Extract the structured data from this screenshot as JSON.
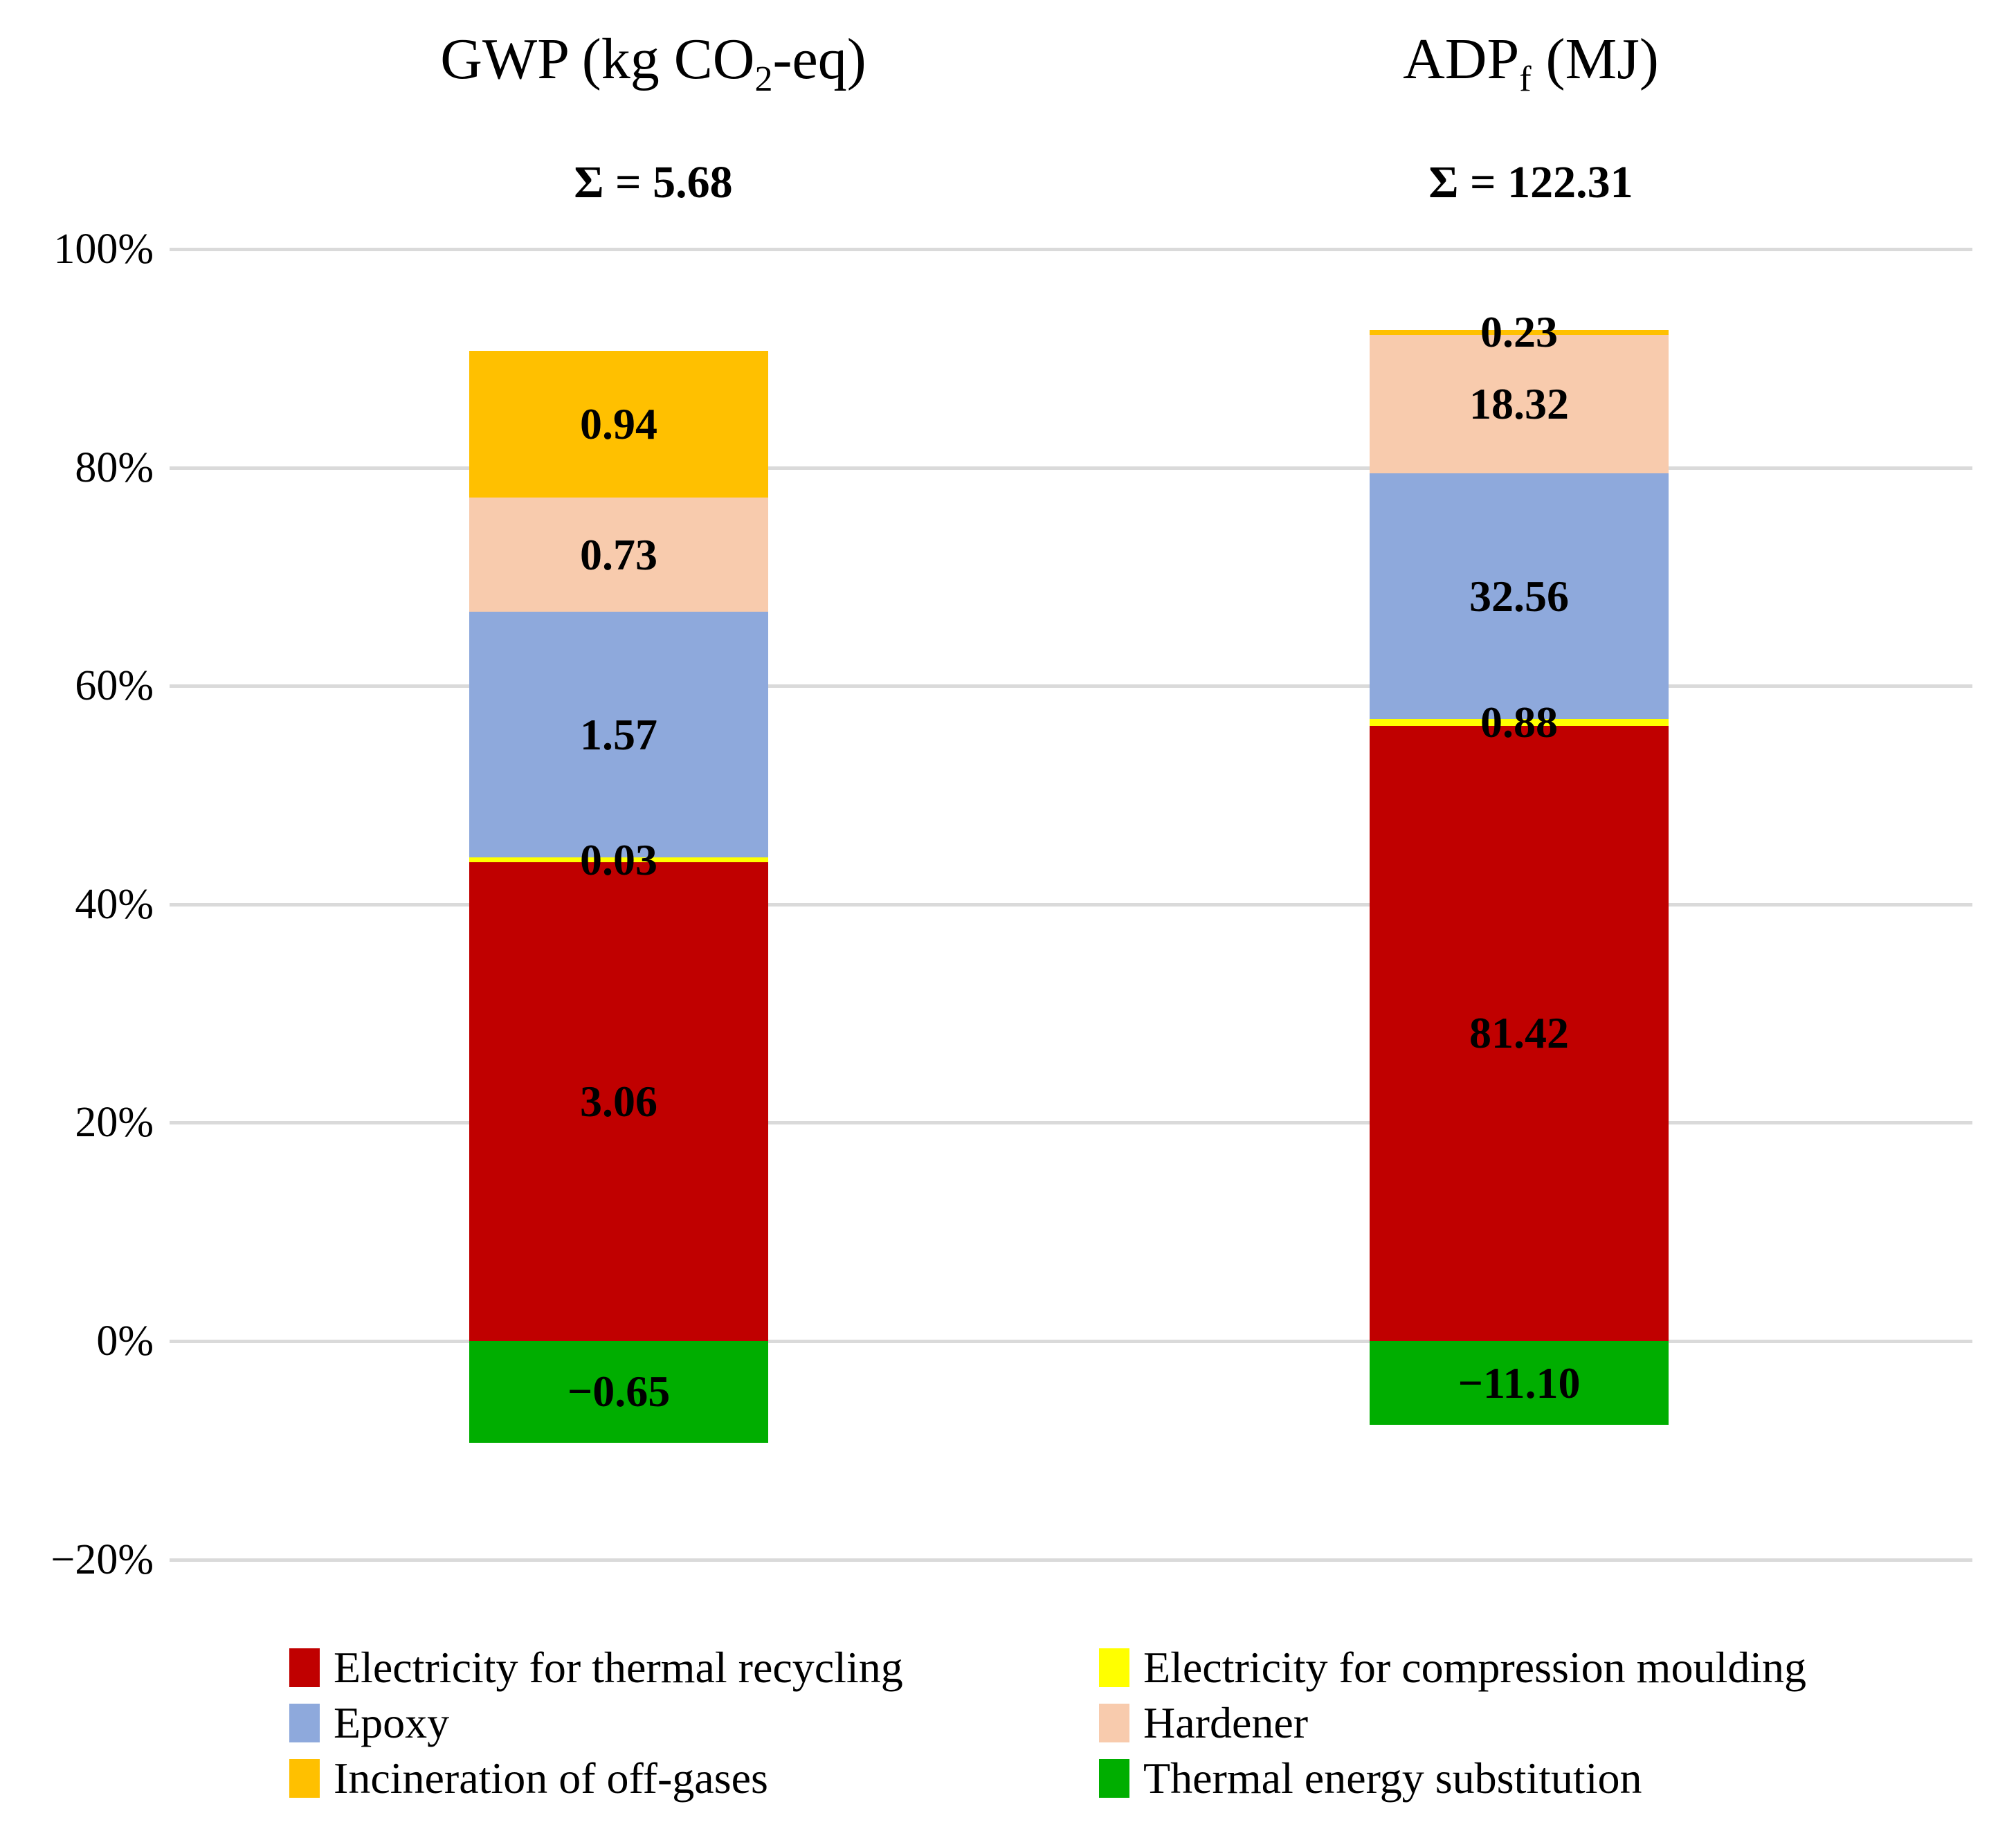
{
  "figure": {
    "columns": [
      {
        "title_pre": "GWP (kg CO",
        "title_sub": "2",
        "title_post": "-eq)",
        "sum_label": "Σ = 5.68"
      },
      {
        "title_pre": "ADP",
        "title_sub": "f",
        "title_post": " (MJ)",
        "sum_label": "Σ = 122.31"
      }
    ]
  },
  "chart_data": {
    "type": "bar",
    "stacked": true,
    "normalization": "each segment height = |value| / sum of |values| of its column, plotted on a 0-100% axis; negative values hang below the 0% baseline",
    "categories": [
      "GWP (kg CO2-eq)",
      "ADPf (MJ)"
    ],
    "column_sums": [
      5.68,
      122.31
    ],
    "series": [
      {
        "name": "Electricity for thermal recycling",
        "color": "#C00000",
        "values": [
          3.06,
          81.42
        ],
        "labels": [
          "3.06",
          "81.42"
        ]
      },
      {
        "name": "Electricity for compression moulding",
        "color": "#FFFF00",
        "values": [
          0.03,
          0.88
        ],
        "labels": [
          "0.03",
          "0.88"
        ]
      },
      {
        "name": "Epoxy",
        "color": "#8EA9DC",
        "values": [
          1.57,
          32.56
        ],
        "labels": [
          "1.57",
          "32.56"
        ]
      },
      {
        "name": "Hardener",
        "color": "#F8CBAD",
        "values": [
          0.73,
          18.32
        ],
        "labels": [
          "0.73",
          "18.32"
        ]
      },
      {
        "name": "Incineration of off-gases",
        "color": "#FFC000",
        "values": [
          0.94,
          0.23
        ],
        "labels": [
          "0.94",
          "0.23"
        ]
      },
      {
        "name": "Thermal energy substitution",
        "color": "#00AE00",
        "values": [
          -0.65,
          -11.1
        ],
        "labels": [
          "−0.65",
          "−11.10"
        ]
      }
    ],
    "ylim": [
      -20,
      100
    ],
    "yticks": [
      {
        "label": "100%",
        "value": 100
      },
      {
        "label": "80%",
        "value": 80
      },
      {
        "label": "60%",
        "value": 60
      },
      {
        "label": "40%",
        "value": 40
      },
      {
        "label": "20%",
        "value": 20
      },
      {
        "label": "0%",
        "value": 0
      },
      {
        "label": "−20%",
        "value": -20
      }
    ],
    "grid": true,
    "legend_position": "bottom"
  },
  "legend": {
    "items": [
      {
        "label": "Electricity for thermal recycling",
        "color": "#C00000"
      },
      {
        "label": "Electricity for compression moulding",
        "color": "#FFFF00"
      },
      {
        "label": "Epoxy",
        "color": "#8EA9DC"
      },
      {
        "label": "Hardener",
        "color": "#F8CBAD"
      },
      {
        "label": "Incineration of off-gases",
        "color": "#FFC000"
      },
      {
        "label": "Thermal energy substitution",
        "color": "#00AE00"
      }
    ]
  }
}
